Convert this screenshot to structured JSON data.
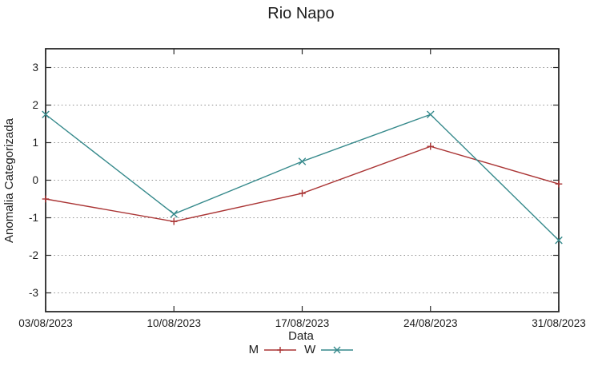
{
  "chart_data": {
    "type": "line",
    "title": "Rio Napo",
    "xlabel": "Data",
    "ylabel": "Anomalia Categorizada",
    "categories": [
      "03/08/2023",
      "10/08/2023",
      "17/08/2023",
      "24/08/2023",
      "31/08/2023"
    ],
    "series": [
      {
        "name": "M",
        "marker": "plus",
        "color": "#aa3434",
        "values": [
          -0.5,
          -1.1,
          -0.35,
          0.9,
          -0.1
        ]
      },
      {
        "name": "W",
        "marker": "x",
        "color": "#35898b",
        "values": [
          1.75,
          -0.9,
          0.5,
          1.75,
          -1.6
        ]
      }
    ],
    "ylim": [
      -3.5,
      3.5
    ],
    "yticks": [
      -3,
      -2,
      -1,
      0,
      1,
      2,
      3
    ],
    "grid": "horizontal-dotted",
    "legend_position": "bottom-center",
    "colors": {
      "background": "#ffffff",
      "border": "#2a2a2a",
      "gridline": "#8f8f8f",
      "text": "#1c1c1c"
    }
  }
}
